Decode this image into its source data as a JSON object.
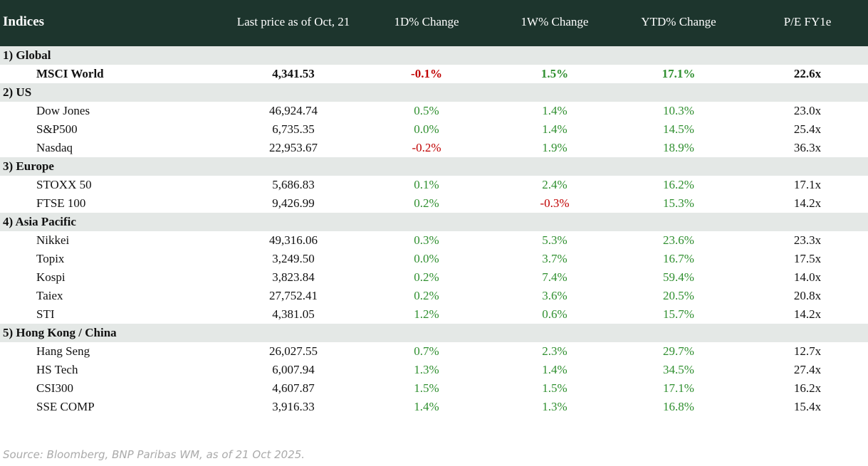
{
  "header": {
    "columns": [
      "Indices",
      "Last price as of Oct, 21",
      "1D% Change",
      "1W% Change",
      "YTD% Change",
      "P/E FY1e"
    ]
  },
  "groups": [
    {
      "label": "1) Global",
      "rows": [
        [
          "MSCI World",
          "4,341.53",
          "-0.1%",
          "1.5%",
          "17.1%",
          "22.6x"
        ]
      ]
    },
    {
      "label": "2) US",
      "rows": [
        [
          "Dow Jones",
          "46,924.74",
          "0.5%",
          "1.4%",
          "10.3%",
          "23.0x"
        ],
        [
          "S&P500",
          "6,735.35",
          "0.0%",
          "1.4%",
          "14.5%",
          "25.4x"
        ],
        [
          "Nasdaq",
          "22,953.67",
          "-0.2%",
          "1.9%",
          "18.9%",
          "36.3x"
        ]
      ]
    },
    {
      "label": "3) Europe",
      "rows": [
        [
          "STOXX 50",
          "5,686.83",
          "0.1%",
          "2.4%",
          "16.2%",
          "17.1x"
        ],
        [
          "FTSE 100",
          "9,426.99",
          "0.2%",
          "-0.3%",
          "15.3%",
          "14.2x"
        ]
      ]
    },
    {
      "label": "4) Asia Pacific",
      "rows": [
        [
          "Nikkei",
          "49,316.06",
          "0.3%",
          "5.3%",
          "23.6%",
          "23.3x"
        ],
        [
          "Topix",
          "3,249.50",
          "0.0%",
          "3.7%",
          "16.7%",
          "17.5x"
        ],
        [
          "Kospi",
          "3,823.84",
          "0.2%",
          "7.4%",
          "59.4%",
          "14.0x"
        ],
        [
          "Taiex",
          "27,752.41",
          "0.2%",
          "3.6%",
          "20.5%",
          "20.8x"
        ],
        [
          "STI",
          "4,381.05",
          "1.2%",
          "0.6%",
          "15.7%",
          "14.2x"
        ]
      ]
    },
    {
      "label": "5) Hong Kong / China",
      "rows": [
        [
          "Hang Seng",
          "26,027.55",
          "0.7%",
          "2.3%",
          "29.7%",
          "12.7x"
        ],
        [
          "HS Tech",
          "6,007.94",
          "1.3%",
          "1.4%",
          "34.5%",
          "27.4x"
        ],
        [
          "CSI300",
          "4,607.87",
          "1.5%",
          "1.5%",
          "17.1%",
          "16.2x"
        ],
        [
          "SSE COMP",
          "3,916.33",
          "1.4%",
          "1.3%",
          "16.8%",
          "15.4x"
        ]
      ]
    }
  ],
  "source": "Source: Bloomberg, BNP Paribas WM, as of 21 Oct 2025."
}
